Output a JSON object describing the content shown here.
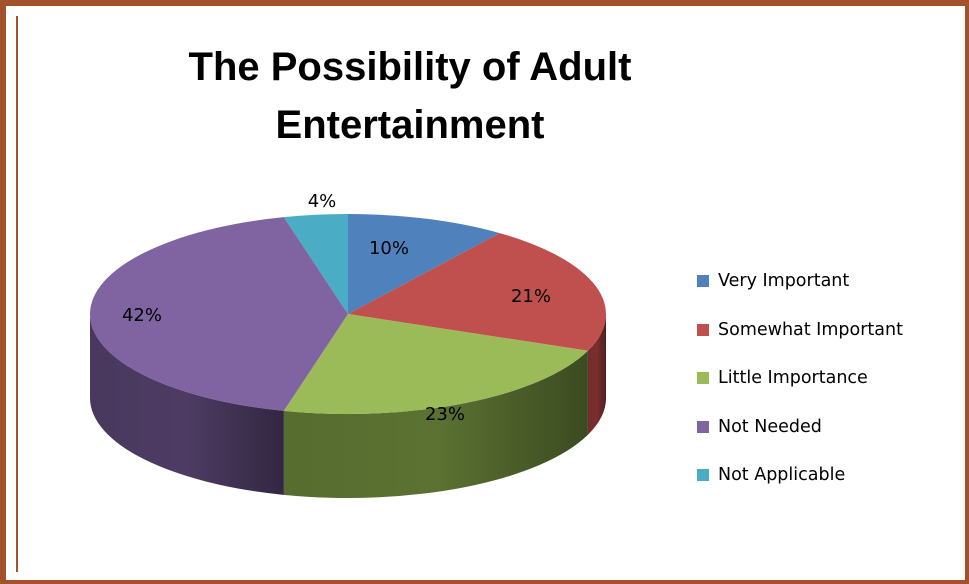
{
  "chart_data": {
    "type": "pie",
    "title_lines": [
      "The Possibility of Adult",
      "Entertainment"
    ],
    "categories": [
      "Very Important",
      "Somewhat Important",
      "Little Importance",
      "Not Needed",
      "Not Applicable"
    ],
    "values": [
      10,
      21,
      23,
      42,
      4
    ],
    "data_labels": [
      "10%",
      "21%",
      "23%",
      "42%",
      "4%"
    ],
    "colors": [
      "#4f81bd",
      "#c0504d",
      "#9bbb59",
      "#8064a2",
      "#4bacc6"
    ],
    "side_colors": [
      "#2f4e75",
      "#7a2f2d",
      "#5b7232",
      "#4d3b63",
      "#2d6a7b"
    ],
    "legend_position": "right",
    "style": "3d-pie"
  }
}
